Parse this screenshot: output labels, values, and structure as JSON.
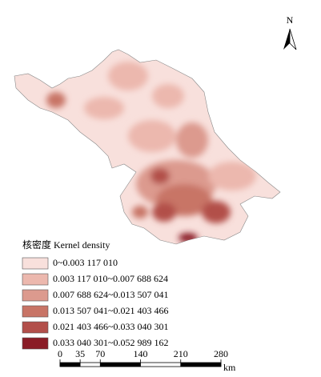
{
  "north_arrow": {
    "label": "N"
  },
  "legend": {
    "title": "核密度 Kernel density",
    "items": [
      {
        "label": "0~0.003 117 010",
        "color": "#f8e0dc"
      },
      {
        "label": "0.003 117 010~0.007 688 624",
        "color": "#ecb8ae"
      },
      {
        "label": "0.007 688 624~0.013 507 041",
        "color": "#dc9a8e"
      },
      {
        "label": "0.013 507 041~0.021 403 466",
        "color": "#c87466"
      },
      {
        "label": "0.021 403 466~0.033 040 301",
        "color": "#b24f4a"
      },
      {
        "label": "0.033 040 301~0.052 989 162",
        "color": "#8a1c26"
      }
    ]
  },
  "scale_bar": {
    "ticks": [
      0,
      35,
      70,
      140,
      210,
      280
    ],
    "unit": "km"
  }
}
